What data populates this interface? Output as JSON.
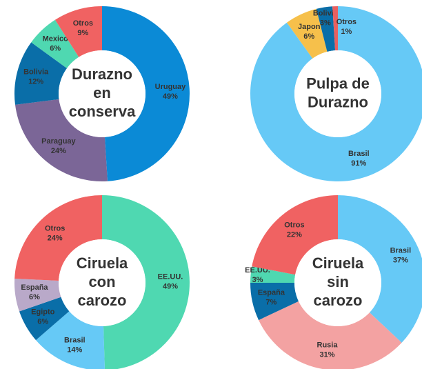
{
  "chart_data": [
    {
      "type": "pie",
      "title": [
        "Durazno",
        "en",
        "conserva"
      ],
      "categories": [
        "Uruguay",
        "Paraguay",
        "Bolivia",
        "Mexico",
        "Otros"
      ],
      "values": [
        49,
        24,
        12,
        6,
        9
      ],
      "value_labels": [
        "49%",
        "24%",
        "12%",
        "6%",
        "9%"
      ],
      "colors": [
        "#0b8ad6",
        "#7b6697",
        "#0a6ea8",
        "#4fd8b1",
        "#f06262"
      ]
    },
    {
      "type": "pie",
      "title": [
        "Pulpa de",
        "Durazno"
      ],
      "categories": [
        "Brasil",
        "Japon",
        "Bolivia",
        "Otros"
      ],
      "values": [
        91,
        6,
        3,
        1
      ],
      "value_labels": [
        "91%",
        "6%",
        "3%",
        "1%"
      ],
      "colors": [
        "#66c9f6",
        "#f6c04b",
        "#0a6ea8",
        "#e86060"
      ]
    },
    {
      "type": "pie",
      "title": [
        "Ciruela",
        "con",
        "carozo"
      ],
      "categories": [
        "EE.UU.",
        "Brasil",
        "Egipto",
        "España",
        "Otros"
      ],
      "values": [
        49,
        14,
        6,
        6,
        24
      ],
      "value_labels": [
        "49%",
        "14%",
        "6%",
        "6%",
        "24%"
      ],
      "colors": [
        "#4fd8b1",
        "#66c9f6",
        "#0a6ea8",
        "#b9a9c9",
        "#f06262"
      ]
    },
    {
      "type": "pie",
      "title": [
        "Ciruela",
        "sin",
        "carozo"
      ],
      "categories": [
        "Brasil",
        "Rusia",
        "España",
        "EE.UU.",
        "Otros"
      ],
      "values": [
        37,
        31,
        7,
        3,
        22
      ],
      "value_labels": [
        "37%",
        "31%",
        "7%",
        "3%",
        "22%"
      ],
      "colors": [
        "#66c9f6",
        "#f3a2a2",
        "#0a6ea8",
        "#4fd8b1",
        "#f06262"
      ]
    }
  ]
}
